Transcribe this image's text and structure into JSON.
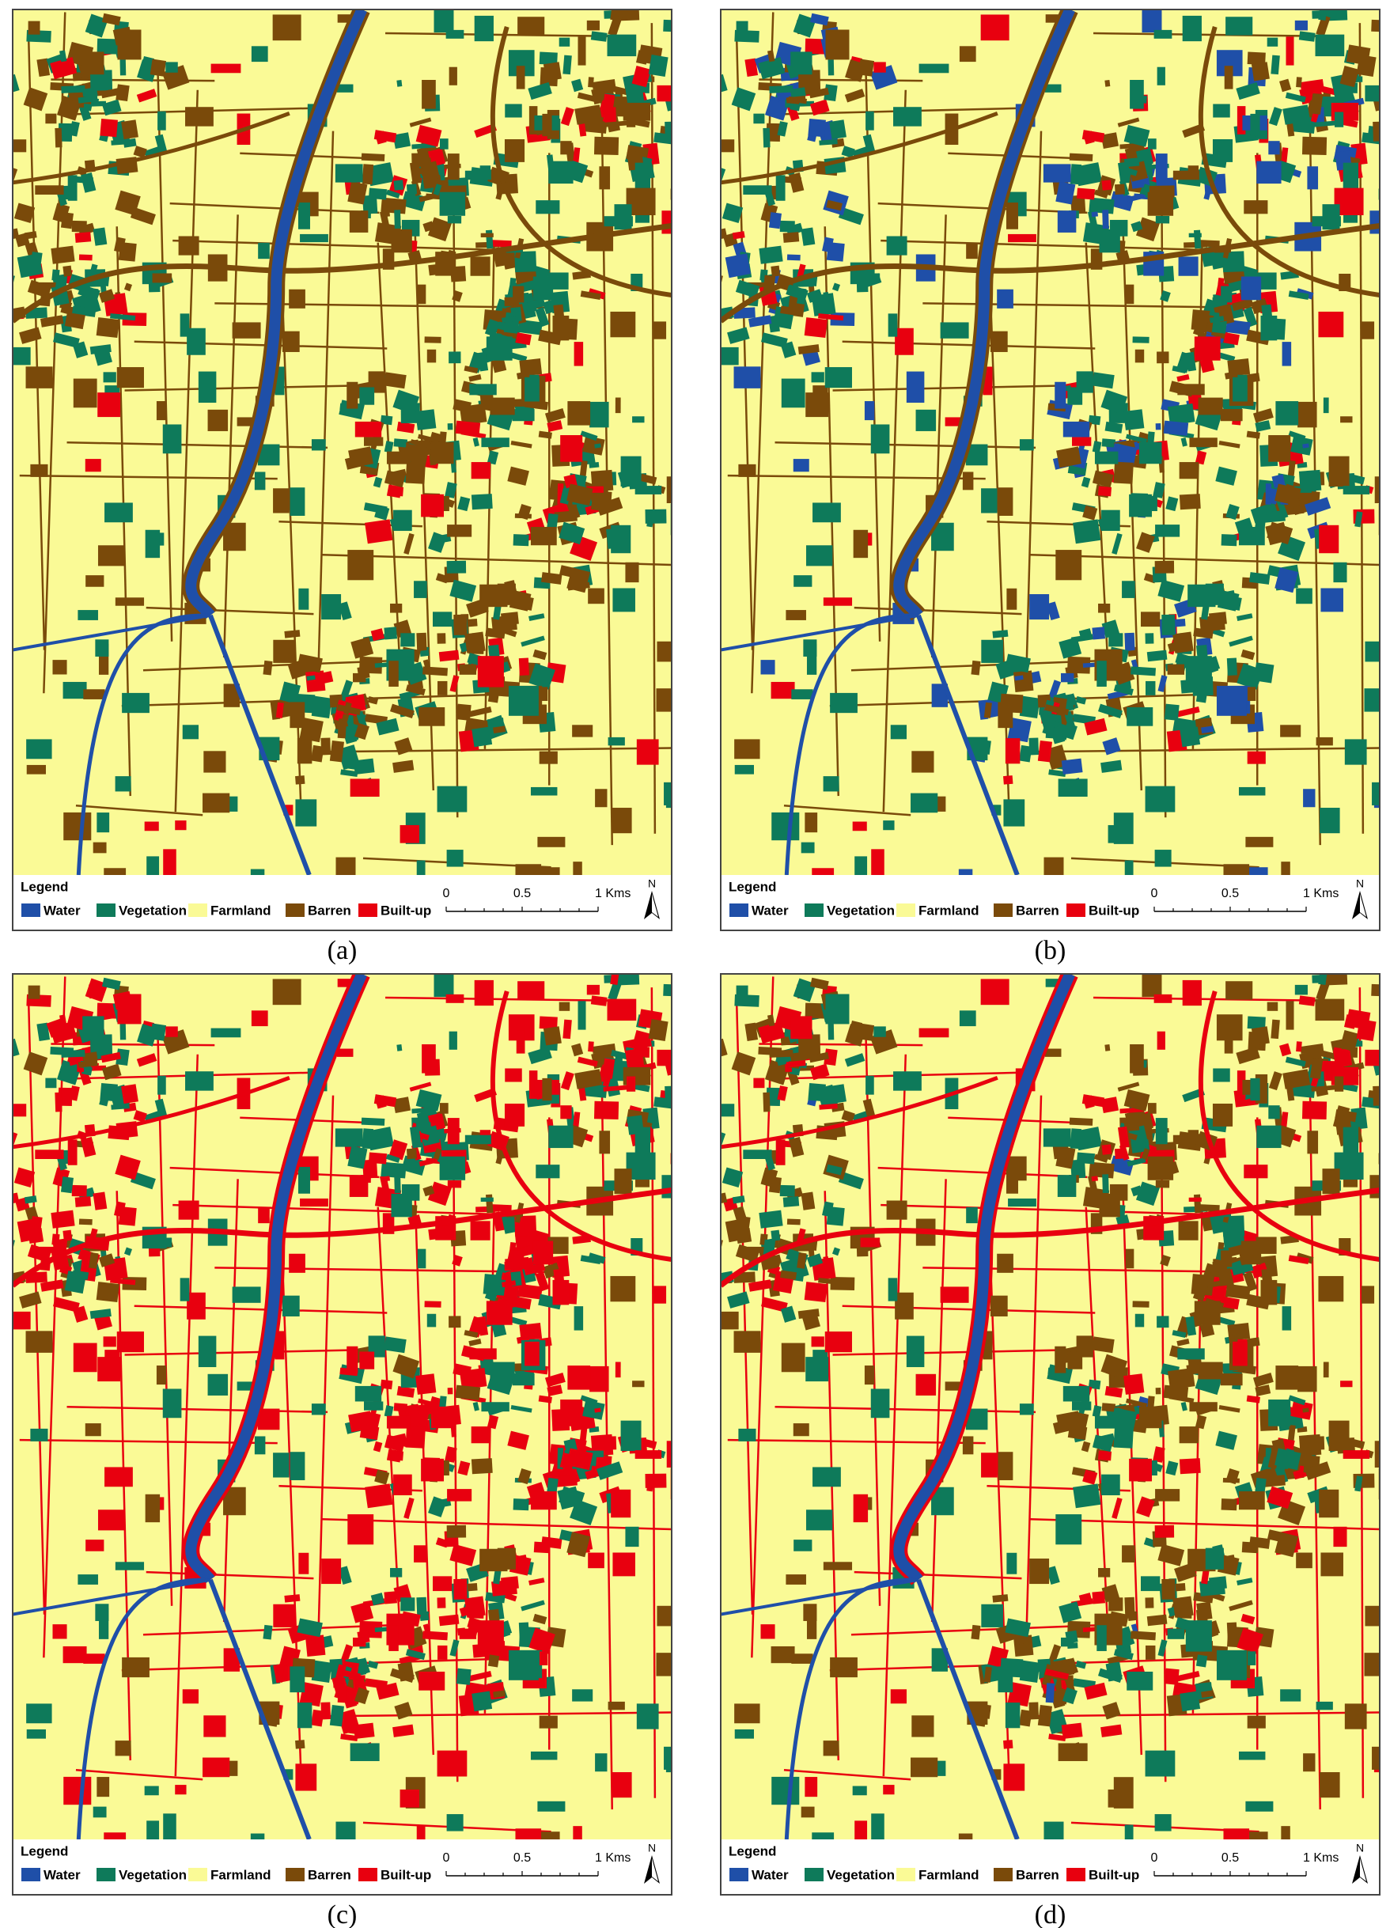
{
  "legend_title": "Legend",
  "legend_items": [
    {
      "label": "Water",
      "color": "#1f4fa8"
    },
    {
      "label": "Vegetation",
      "color": "#0e7a5a"
    },
    {
      "label": "Farmland",
      "color": "#fafa96"
    },
    {
      "label": "Barren",
      "color": "#7a4a0a"
    },
    {
      "label": "Built-up",
      "color": "#e8000f"
    }
  ],
  "scale_bar": {
    "labels": [
      "0",
      "0.5",
      "1 Kms"
    ]
  },
  "north": "N",
  "panels": [
    {
      "caption": "(a)"
    },
    {
      "caption": "(b)"
    },
    {
      "caption": "(c)"
    },
    {
      "caption": "(d)"
    }
  ]
}
